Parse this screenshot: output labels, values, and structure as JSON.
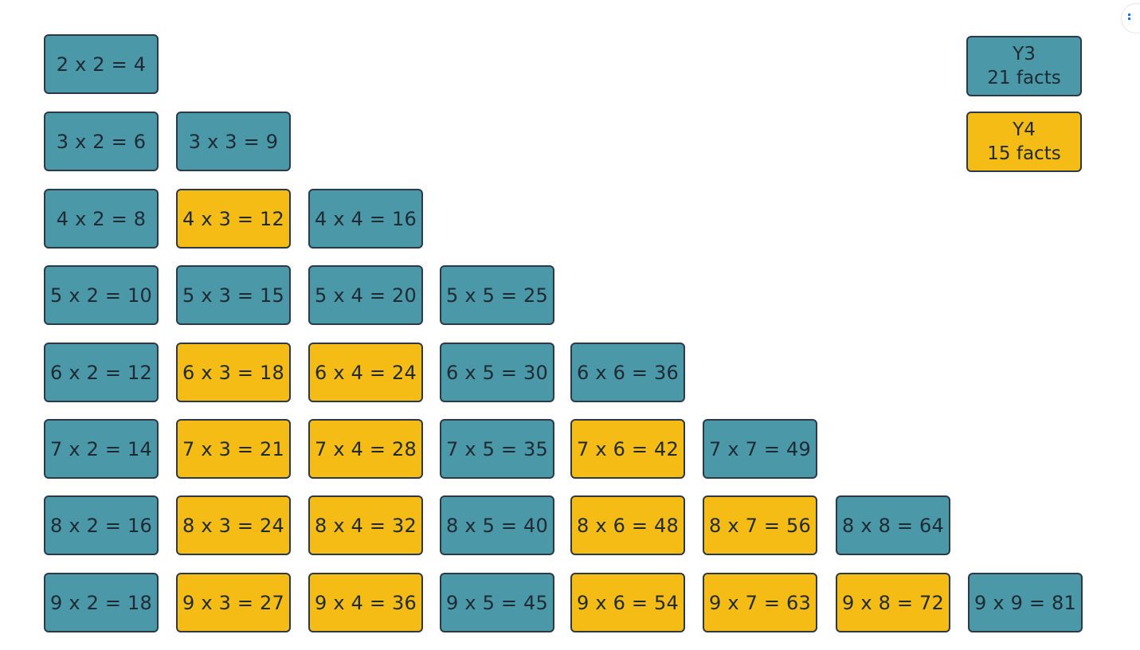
{
  "colors": {
    "y3": "#4a98a8",
    "y4": "#f5bc16",
    "border": "#2b3a46",
    "text": "#1f2a33"
  },
  "legend": [
    {
      "label": "Y3",
      "count": "21 facts",
      "group": "y3"
    },
    {
      "label": "Y4",
      "count": "15 facts",
      "group": "y4"
    }
  ],
  "facts": [
    {
      "text": "2 x 2 = 4",
      "a": 2,
      "b": 2,
      "group": "y3"
    },
    {
      "text": "3 x 2 = 6",
      "a": 3,
      "b": 2,
      "group": "y3"
    },
    {
      "text": "3 x 3 = 9",
      "a": 3,
      "b": 3,
      "group": "y3"
    },
    {
      "text": "4 x 2 = 8",
      "a": 4,
      "b": 2,
      "group": "y3"
    },
    {
      "text": "4 x 3 = 12",
      "a": 4,
      "b": 3,
      "group": "y4"
    },
    {
      "text": "4 x 4 = 16",
      "a": 4,
      "b": 4,
      "group": "y3"
    },
    {
      "text": "5 x 2 = 10",
      "a": 5,
      "b": 2,
      "group": "y3"
    },
    {
      "text": "5 x 3 = 15",
      "a": 5,
      "b": 3,
      "group": "y3"
    },
    {
      "text": "5 x 4 = 20",
      "a": 5,
      "b": 4,
      "group": "y3"
    },
    {
      "text": "5 x 5 = 25",
      "a": 5,
      "b": 5,
      "group": "y3"
    },
    {
      "text": "6 x 2 = 12",
      "a": 6,
      "b": 2,
      "group": "y3"
    },
    {
      "text": "6 x 3 = 18",
      "a": 6,
      "b": 3,
      "group": "y4"
    },
    {
      "text": "6 x 4 = 24",
      "a": 6,
      "b": 4,
      "group": "y4"
    },
    {
      "text": "6 x 5 = 30",
      "a": 6,
      "b": 5,
      "group": "y3"
    },
    {
      "text": "6 x 6 = 36",
      "a": 6,
      "b": 6,
      "group": "y3"
    },
    {
      "text": "7 x 2 = 14",
      "a": 7,
      "b": 2,
      "group": "y3"
    },
    {
      "text": "7 x 3 = 21",
      "a": 7,
      "b": 3,
      "group": "y4"
    },
    {
      "text": "7 x 4 = 28",
      "a": 7,
      "b": 4,
      "group": "y4"
    },
    {
      "text": "7 x 5 = 35",
      "a": 7,
      "b": 5,
      "group": "y3"
    },
    {
      "text": "7 x 6 = 42",
      "a": 7,
      "b": 6,
      "group": "y4"
    },
    {
      "text": "7 x 7 = 49",
      "a": 7,
      "b": 7,
      "group": "y3"
    },
    {
      "text": "8 x 2 = 16",
      "a": 8,
      "b": 2,
      "group": "y3"
    },
    {
      "text": "8 x 3 = 24",
      "a": 8,
      "b": 3,
      "group": "y4"
    },
    {
      "text": "8 x 4 = 32",
      "a": 8,
      "b": 4,
      "group": "y4"
    },
    {
      "text": "8 x 5 = 40",
      "a": 8,
      "b": 5,
      "group": "y3"
    },
    {
      "text": "8 x 6 = 48",
      "a": 8,
      "b": 6,
      "group": "y4"
    },
    {
      "text": "8 x 7 = 56",
      "a": 8,
      "b": 7,
      "group": "y4"
    },
    {
      "text": "8 x 8 = 64",
      "a": 8,
      "b": 8,
      "group": "y3"
    },
    {
      "text": "9 x 2 = 18",
      "a": 9,
      "b": 2,
      "group": "y3"
    },
    {
      "text": "9 x 3 = 27",
      "a": 9,
      "b": 3,
      "group": "y4"
    },
    {
      "text": "9 x 4 = 36",
      "a": 9,
      "b": 4,
      "group": "y4"
    },
    {
      "text": "9 x 5 = 45",
      "a": 9,
      "b": 5,
      "group": "y3"
    },
    {
      "text": "9 x 6 = 54",
      "a": 9,
      "b": 6,
      "group": "y4"
    },
    {
      "text": "9 x 7 = 63",
      "a": 9,
      "b": 7,
      "group": "y4"
    },
    {
      "text": "9 x 8 = 72",
      "a": 9,
      "b": 8,
      "group": "y4"
    },
    {
      "text": "9 x 9 = 81",
      "a": 9,
      "b": 9,
      "group": "y3"
    }
  ]
}
